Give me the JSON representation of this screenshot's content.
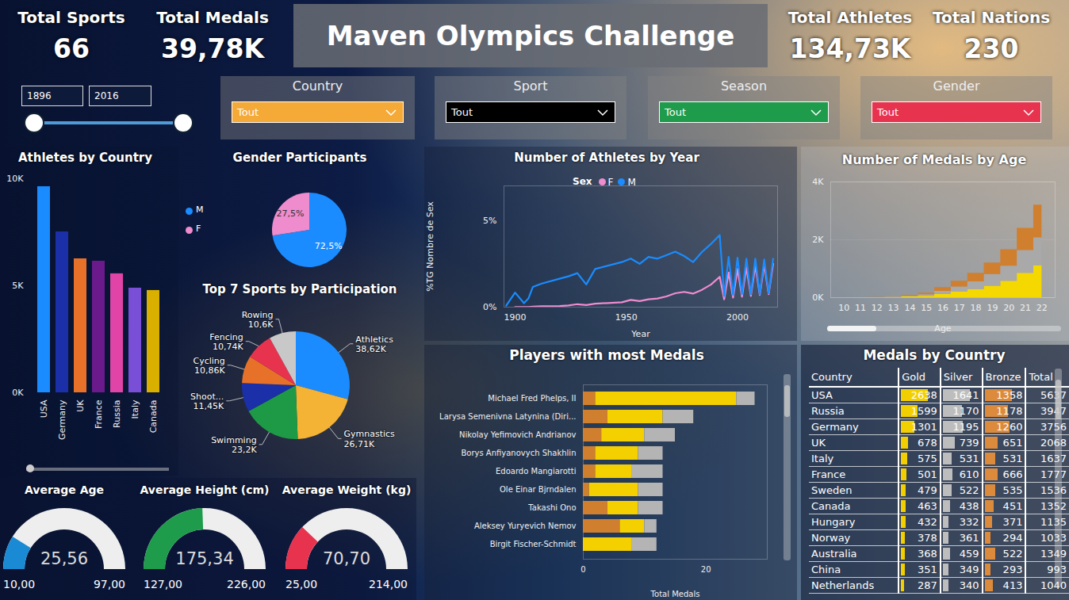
{
  "header": {
    "title": "Maven Olympics Challenge"
  },
  "kpis": [
    {
      "label": "Total Sports",
      "value": 66
    },
    {
      "label": "Total Medals",
      "value": 39780,
      "value_label": "39,78K"
    },
    {
      "label": "Total Athletes",
      "value": 134730,
      "value_label": "134,73K"
    },
    {
      "label": "Total Nations",
      "value": 230
    }
  ],
  "year_slider": {
    "range": [
      1896,
      2016
    ]
  },
  "filters": [
    {
      "label": "Country",
      "value": "Tout",
      "color": "#f5a936"
    },
    {
      "label": "Sport",
      "value": "Tout",
      "color": "#000000"
    },
    {
      "label": "Season",
      "value": "Tout",
      "color": "#1e9b4b"
    },
    {
      "label": "Gender",
      "value": "Tout",
      "color": "#e8334f"
    }
  ],
  "chart_data": [
    {
      "type": "bar",
      "title": "Athletes by Country",
      "categories": [
        "USA",
        "Germany",
        "UK",
        "France",
        "Russia",
        "Italy",
        "Canada"
      ],
      "values": [
        9630,
        7520,
        6260,
        6150,
        5560,
        4890,
        4780
      ],
      "colors": [
        "#1a8cff",
        "#1a2fa8",
        "#e8712a",
        "#6b1a8c",
        "#e044a7",
        "#7a4fd8",
        "#d9b000"
      ],
      "ylim": [
        0,
        10000
      ],
      "yticks": [
        {
          "value": 0,
          "label": "0K"
        },
        {
          "value": 5000,
          "label": "5K"
        },
        {
          "value": 10000,
          "label": "10K"
        }
      ],
      "grid": false
    },
    {
      "type": "pie",
      "title": "Gender Participants",
      "categories": [
        "M",
        "F"
      ],
      "values": [
        72.5,
        27.5
      ],
      "value_labels": [
        "72,5%",
        "27,5%"
      ],
      "colors": [
        "#1a8cff",
        "#ee8ccd"
      ],
      "legend": "left",
      "data_labels": true
    },
    {
      "type": "pie",
      "title": "Top 7 Sports by Participation",
      "categories": [
        "Athletics",
        "Gymnastics",
        "Swimming",
        "Shoot...",
        "Cycling",
        "Fencing",
        "Rowing"
      ],
      "values": [
        38620,
        26710,
        23200,
        11450,
        10860,
        10740,
        10600
      ],
      "value_labels": [
        "38,62K",
        "26,71K",
        "23,2K",
        "11,45K",
        "10,86K",
        "10,74K",
        "10,6K"
      ],
      "colors": [
        "#1a8cff",
        "#f5b335",
        "#1e9a46",
        "#1a2fa8",
        "#e8712a",
        "#e8334f",
        "#c8c8c8"
      ],
      "data_labels": true
    },
    {
      "type": "line",
      "title": "Number of Athletes by Year",
      "x_label": "Year",
      "y_label": "%TG Nombre de Sex",
      "legend_title": "Sex",
      "legend": "top",
      "x": [
        1896,
        1900,
        1904,
        1906,
        1908,
        1912,
        1920,
        1924,
        1928,
        1932,
        1936,
        1948,
        1952,
        1956,
        1960,
        1964,
        1968,
        1972,
        1976,
        1980,
        1984,
        1988,
        1992,
        1994,
        1996,
        1998,
        2000,
        2002,
        2004,
        2006,
        2008,
        2010,
        2012,
        2014,
        2016
      ],
      "series": [
        {
          "name": "F",
          "color": "#f08cd0",
          "values": [
            null,
            0.01,
            0.01,
            0.01,
            0.03,
            0.05,
            0.06,
            0.1,
            0.17,
            0.12,
            0.2,
            0.28,
            0.42,
            0.35,
            0.45,
            0.5,
            0.62,
            0.8,
            0.88,
            0.78,
            1.0,
            1.3,
            1.75,
            0.45,
            2.0,
            0.55,
            2.2,
            0.6,
            2.3,
            0.65,
            2.4,
            0.7,
            2.45,
            0.75,
            2.5
          ]
        },
        {
          "name": "M",
          "color": "#1a8cff",
          "values": [
            0.09,
            0.84,
            0.23,
            0.5,
            1.17,
            1.36,
            1.64,
            1.78,
            1.96,
            1.31,
            2.2,
            2.6,
            2.8,
            2.5,
            2.9,
            2.8,
            3.0,
            3.2,
            2.95,
            2.6,
            3.18,
            3.64,
            4.16,
            0.65,
            2.9,
            0.7,
            2.85,
            0.75,
            2.8,
            0.75,
            2.8,
            0.75,
            2.75,
            0.8,
            2.8
          ]
        }
      ],
      "xlim": [
        1895,
        2018
      ],
      "xticks": [
        1900,
        1950,
        2000
      ],
      "ylim": [
        0,
        7
      ],
      "yticks": [
        {
          "value": 0,
          "label": "0%"
        },
        {
          "value": 5,
          "label": "5%"
        }
      ],
      "grid": false
    },
    {
      "type": "area",
      "title": "Number of Medals by Age",
      "x_label": "Age",
      "stacked": true,
      "line_style": "step",
      "x": [
        10,
        11,
        12,
        13,
        14,
        15,
        16,
        17,
        18,
        19,
        20,
        21,
        22
      ],
      "series": [
        {
          "color": "#f5d800",
          "values": [
            0,
            0,
            1,
            10,
            25,
            50,
            110,
            190,
            280,
            400,
            570,
            840,
            1100
          ]
        },
        {
          "color": "#a9a9a9",
          "values": [
            0,
            0,
            1,
            10,
            25,
            50,
            110,
            180,
            270,
            400,
            520,
            790,
            970
          ]
        },
        {
          "color": "#d07f2e",
          "values": [
            1,
            1,
            2,
            10,
            30,
            60,
            130,
            200,
            290,
            400,
            570,
            770,
            1130
          ]
        }
      ],
      "xlim": [
        9.2,
        22.8
      ],
      "xticks": [
        10,
        11,
        12,
        13,
        14,
        15,
        16,
        17,
        18,
        19,
        20,
        21,
        22
      ],
      "ylim": [
        0,
        4000
      ],
      "yticks": [
        {
          "value": 0,
          "label": "0K"
        },
        {
          "value": 2000,
          "label": "2K"
        },
        {
          "value": 4000,
          "label": "4K"
        }
      ],
      "grid": true
    },
    {
      "type": "bar",
      "title": "Players with most Medals",
      "orientation": "horizontal",
      "stacked": true,
      "x_label": "Total Medals",
      "categories": [
        "Michael Fred Phelps, II",
        "Larysa Semenivna Latynina (Diri...",
        "Nikolay Yefimovich Andrianov",
        "Borys Anfiyanovych Shakhlin",
        "Edoardo Mangiarotti",
        "Ole Einar Bjrndalen",
        "Takashi Ono",
        "Aleksey Yuryevich Nemov",
        "Birgit Fischer-Schmidt"
      ],
      "series": [
        {
          "color": "#d07f2e",
          "values": [
            2,
            4,
            3,
            2,
            2,
            1,
            4,
            6,
            0
          ]
        },
        {
          "color": "#f5d000",
          "values": [
            23,
            9,
            7,
            7,
            6,
            8,
            5,
            4,
            8
          ]
        },
        {
          "color": "#b4b4b4",
          "values": [
            3,
            5,
            5,
            4,
            5,
            4,
            4,
            2,
            4
          ]
        }
      ],
      "xlim": [
        0,
        30
      ],
      "xticks": [
        0,
        20
      ],
      "grid": false
    }
  ],
  "gauges": [
    {
      "title": "Average Age",
      "value": 25.56,
      "value_label": "25,56",
      "min": {
        "value": 10,
        "label": "10,00"
      },
      "max": {
        "value": 97,
        "label": "97,00"
      },
      "color": "#1a8ad4"
    },
    {
      "title": "Average Height (cm)",
      "value": 175.34,
      "value_label": "175,34",
      "min": {
        "value": 127,
        "label": "127,00"
      },
      "max": {
        "value": 226,
        "label": "226,00"
      },
      "color": "#1e9b4b"
    },
    {
      "title": "Average Weight (kg)",
      "value": 70.7,
      "value_label": "70,70",
      "min": {
        "value": 25,
        "label": "25,00"
      },
      "max": {
        "value": 214,
        "label": "214,00"
      },
      "color": "#e8334f"
    }
  ],
  "table": {
    "title": "Medals by Country",
    "columns": [
      "Country",
      "Gold",
      "Silver",
      "Bronze",
      "Total"
    ],
    "bar_colors": {
      "Gold": "#f2cf00",
      "Silver": "#bdbdbd",
      "Bronze": "#dc8a3c"
    },
    "rows": [
      [
        "USA",
        2638,
        1641,
        1358,
        5637
      ],
      [
        "Russia",
        1599,
        1170,
        1178,
        3947
      ],
      [
        "Germany",
        1301,
        1195,
        1260,
        3756
      ],
      [
        "UK",
        678,
        739,
        651,
        2068
      ],
      [
        "Italy",
        575,
        531,
        531,
        1637
      ],
      [
        "France",
        501,
        610,
        666,
        1777
      ],
      [
        "Sweden",
        479,
        522,
        535,
        1536
      ],
      [
        "Canada",
        463,
        438,
        451,
        1352
      ],
      [
        "Hungary",
        432,
        332,
        371,
        1135
      ],
      [
        "Norway",
        378,
        361,
        294,
        1033
      ],
      [
        "Australia",
        368,
        459,
        522,
        1349
      ],
      [
        "China",
        351,
        349,
        293,
        993
      ],
      [
        "Netherlands",
        287,
        340,
        413,
        1040
      ]
    ]
  }
}
